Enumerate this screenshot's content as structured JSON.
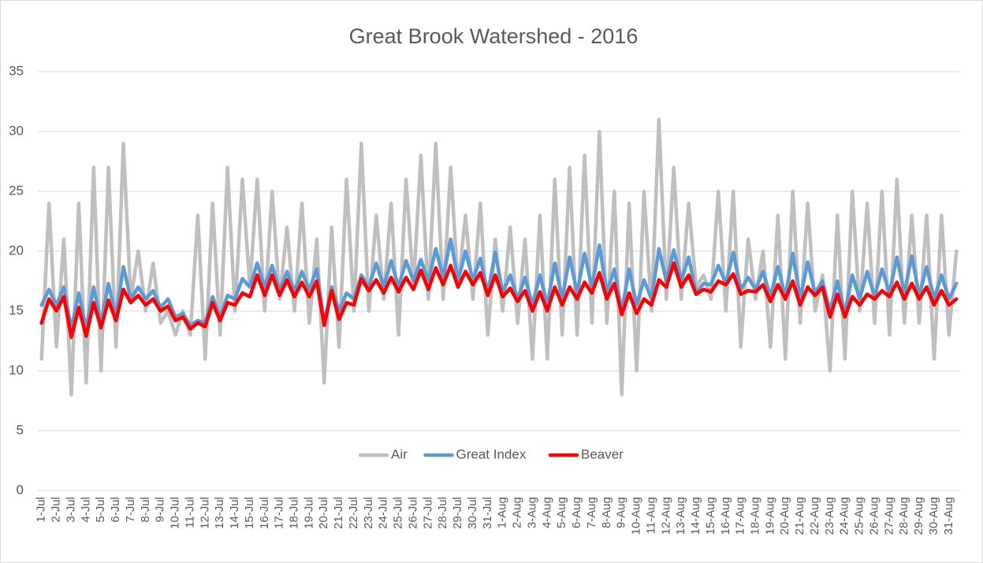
{
  "chart_data": {
    "type": "line",
    "title": "Great Brook Watershed - 2016",
    "categories": [
      "1-Jul",
      null,
      "2-Jul",
      null,
      "3-Jul",
      null,
      "4-Jul",
      null,
      "5-Jul",
      null,
      "6-Jul",
      null,
      "7-Jul",
      null,
      "8-Jul",
      null,
      "9-Jul",
      null,
      "10-Jul",
      null,
      "11-Jul",
      null,
      "12-Jul",
      null,
      "13-Jul",
      null,
      "14-Jul",
      null,
      "15-Jul",
      null,
      "16-Jul",
      null,
      "17-Jul",
      null,
      "18-Jul",
      null,
      "19-Jul",
      null,
      "20-Jul",
      null,
      "21-Jul",
      null,
      "22-Jul",
      null,
      "23-Jul",
      null,
      "24-Jul",
      null,
      "25-Jul",
      null,
      "26-Jul",
      null,
      "27-Jul",
      null,
      "28-Jul",
      null,
      "29-Jul",
      null,
      "30-Jul",
      null,
      "31-Jul",
      null,
      "1-Aug",
      null,
      "2-Aug",
      null,
      "3-Aug",
      null,
      "4-Aug",
      null,
      "5-Aug",
      null,
      "6-Aug",
      null,
      "7-Aug",
      null,
      "8-Aug",
      null,
      "9-Aug",
      null,
      "10-Aug",
      null,
      "11-Aug",
      null,
      "12-Aug",
      null,
      "13-Aug",
      null,
      "14-Aug",
      null,
      "15-Aug",
      null,
      "16-Aug",
      null,
      "17-Aug",
      null,
      "18-Aug",
      null,
      "19-Aug",
      null,
      "20-Aug",
      null,
      "21-Aug",
      null,
      "22-Aug",
      null,
      "23-Aug",
      null,
      "24-Aug",
      null,
      "25-Aug",
      null,
      "26-Aug",
      null,
      "27-Aug",
      null,
      "28-Aug",
      null,
      "29-Aug",
      null,
      "30-Aug",
      null,
      "31-Aug",
      null
    ],
    "series": [
      {
        "name": "Air",
        "color": "#bfbfbf",
        "values": [
          11,
          24,
          12,
          21,
          8,
          24,
          9,
          27,
          10,
          27,
          12,
          29,
          16,
          20,
          15,
          19,
          14,
          15,
          13,
          15,
          13,
          23,
          11,
          24,
          13,
          27,
          15,
          26,
          17,
          26,
          15,
          25,
          16,
          22,
          15,
          24,
          14,
          21,
          9,
          22,
          12,
          26,
          15,
          29,
          15,
          23,
          16,
          24,
          13,
          26,
          17,
          28,
          16,
          29,
          16,
          27,
          17,
          23,
          16,
          24,
          13,
          21,
          15,
          22,
          14,
          21,
          11,
          23,
          11,
          26,
          13,
          27,
          13,
          28,
          14,
          30,
          14,
          25,
          8,
          24,
          10,
          25,
          15,
          31,
          16,
          27,
          16,
          24,
          17,
          18,
          16,
          25,
          15,
          25,
          12,
          21,
          16,
          20,
          12,
          23,
          11,
          25,
          14,
          24,
          15,
          18,
          10,
          23,
          11,
          25,
          15,
          24,
          14,
          25,
          13,
          26,
          14,
          23,
          14,
          23,
          11,
          23,
          13,
          20
        ]
      },
      {
        "name": "Great Index",
        "color": "#5b9bd5",
        "values": [
          15.5,
          16.8,
          15.5,
          17,
          13.5,
          16.5,
          13.5,
          17,
          14,
          17.3,
          14.5,
          18.7,
          16,
          17,
          16,
          16.7,
          15.3,
          16,
          14.5,
          14.8,
          13.8,
          14.2,
          14,
          16.2,
          14.5,
          16.3,
          16,
          17.7,
          17,
          19,
          17,
          18.8,
          16.7,
          18.3,
          16.6,
          18.3,
          16.8,
          18.5,
          14,
          17,
          15,
          16.5,
          16,
          18,
          17,
          19,
          17,
          19.2,
          17,
          19.2,
          17.5,
          19.3,
          17.5,
          20.2,
          17.8,
          21,
          17.5,
          20,
          17.6,
          19.4,
          16.5,
          19.9,
          16.5,
          18,
          16,
          17.8,
          15.5,
          18,
          15.5,
          19,
          16,
          19.5,
          16.5,
          19.8,
          17,
          20.5,
          16.5,
          18.5,
          15,
          18.5,
          15.5,
          17.6,
          16,
          20.2,
          17.5,
          20.1,
          17.5,
          19.5,
          16.5,
          17.3,
          17.2,
          18.8,
          17.3,
          19.9,
          16.8,
          17.8,
          16.8,
          18.3,
          16.2,
          18.7,
          16.2,
          19.8,
          16,
          19.1,
          16.5,
          17.5,
          15,
          17.5,
          14.8,
          18,
          16,
          18.3,
          16.2,
          18.5,
          16.5,
          19.5,
          16.5,
          19.6,
          16.3,
          18.7,
          16,
          18,
          16,
          17.3
        ]
      },
      {
        "name": "Beaver",
        "color": "#ff0000",
        "values": [
          14,
          16,
          15,
          16.2,
          12.8,
          15.3,
          12.9,
          15.7,
          13.6,
          15.9,
          14.2,
          16.8,
          15.7,
          16.3,
          15.5,
          16,
          15,
          15.4,
          14.2,
          14.5,
          13.5,
          14,
          13.7,
          15.7,
          14.2,
          15.7,
          15.5,
          16.5,
          16.2,
          18,
          16.3,
          18,
          16.3,
          17.6,
          16.2,
          17.4,
          16.2,
          17.5,
          13.8,
          16.7,
          14.3,
          15.7,
          15.5,
          17.7,
          16.7,
          17.6,
          16.5,
          17.8,
          16.6,
          17.8,
          16.8,
          18.4,
          16.8,
          18.6,
          17.2,
          18.8,
          17,
          18.3,
          17.2,
          18.2,
          16.3,
          18,
          16.2,
          16.9,
          15.8,
          16.7,
          15,
          16.6,
          15,
          17,
          15.5,
          17,
          16,
          17.4,
          16.5,
          18.2,
          16,
          17.3,
          14.7,
          16.5,
          14.8,
          16,
          15.5,
          17.6,
          17,
          19,
          17,
          18,
          16.4,
          16.8,
          16.6,
          17.5,
          17.2,
          18.1,
          16.4,
          16.7,
          16.6,
          17.2,
          15.8,
          17.2,
          16,
          17.5,
          15.5,
          17,
          16.3,
          17,
          14.5,
          16.4,
          14.5,
          16.2,
          15.5,
          16.4,
          16,
          16.7,
          16.2,
          17.4,
          16,
          17.3,
          16,
          17,
          15.5,
          16.7,
          15.5,
          16
        ]
      }
    ],
    "ylim": [
      0,
      35
    ],
    "yticks": [
      0,
      5,
      10,
      15,
      20,
      25,
      30,
      35
    ],
    "grid": true,
    "legend": "bottom"
  }
}
